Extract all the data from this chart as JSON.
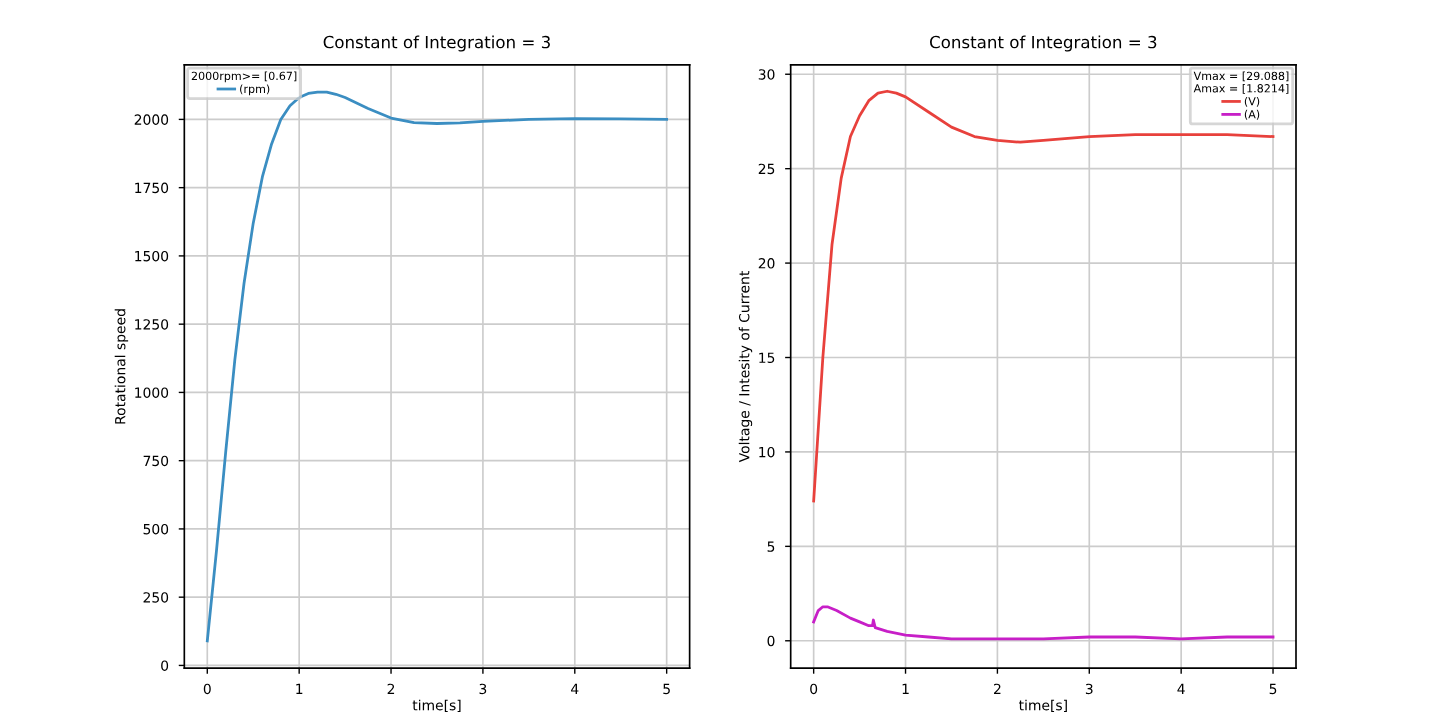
{
  "chart_data": [
    {
      "type": "line",
      "title": "Constant of Integration = 3",
      "xlabel": "time[s]",
      "ylabel": "Rotational speed",
      "legend_title": "2000rpm>= [0.67]",
      "legend": "top left",
      "grid": true,
      "xlim": [
        -0.25,
        5.25
      ],
      "xticks": [
        0,
        1,
        2,
        3,
        4,
        5
      ],
      "ylim": [
        -10,
        2200
      ],
      "yticks": [
        0,
        250,
        500,
        750,
        1000,
        1250,
        1500,
        1750,
        2000
      ],
      "series": [
        {
          "name": "(rpm)",
          "color": "#3b8ec2",
          "x": [
            0,
            0.1,
            0.2,
            0.3,
            0.4,
            0.5,
            0.6,
            0.7,
            0.8,
            0.9,
            1.0,
            1.1,
            1.2,
            1.3,
            1.4,
            1.5,
            1.75,
            2.0,
            2.25,
            2.5,
            2.75,
            3.0,
            3.5,
            4.0,
            4.5,
            5.0
          ],
          "values": [
            90,
            420,
            780,
            1120,
            1400,
            1620,
            1790,
            1910,
            2000,
            2050,
            2080,
            2095,
            2100,
            2100,
            2092,
            2080,
            2040,
            2005,
            1988,
            1985,
            1987,
            1993,
            2000,
            2003,
            2002,
            2000
          ]
        }
      ]
    },
    {
      "type": "line",
      "title": "Constant of Integration = 3",
      "xlabel": "time[s]",
      "ylabel": "Voltage / Intesity of Current",
      "legend_title": "Vmax = [29.088]\nAmax = [1.8214]",
      "legend": "top right",
      "grid": true,
      "xlim": [
        -0.25,
        5.25
      ],
      "xticks": [
        0,
        1,
        2,
        3,
        4,
        5
      ],
      "ylim": [
        -1.45,
        30.5
      ],
      "yticks": [
        0,
        5,
        10,
        15,
        20,
        25,
        30
      ],
      "series": [
        {
          "name": "(V)",
          "color": "#e8413c",
          "x": [
            0,
            0.1,
            0.2,
            0.3,
            0.4,
            0.5,
            0.6,
            0.7,
            0.8,
            0.9,
            1.0,
            1.25,
            1.5,
            1.75,
            2.0,
            2.25,
            2.5,
            3.0,
            3.5,
            4.0,
            4.5,
            5.0
          ],
          "values": [
            7.4,
            15,
            21,
            24.5,
            26.7,
            27.8,
            28.6,
            29.0,
            29.1,
            29.0,
            28.8,
            28.0,
            27.2,
            26.7,
            26.5,
            26.4,
            26.5,
            26.7,
            26.8,
            26.8,
            26.8,
            26.7
          ]
        },
        {
          "name": "(A)",
          "color": "#c71fc7",
          "x": [
            0,
            0.05,
            0.1,
            0.15,
            0.25,
            0.4,
            0.5,
            0.6,
            0.64,
            0.65,
            0.67,
            0.8,
            1.0,
            1.25,
            1.5,
            2.0,
            2.5,
            3.0,
            3.5,
            4.0,
            4.5,
            5.0
          ],
          "values": [
            1.0,
            1.6,
            1.8,
            1.8,
            1.6,
            1.2,
            1.0,
            0.8,
            0.8,
            1.1,
            0.7,
            0.5,
            0.3,
            0.2,
            0.1,
            0.1,
            0.1,
            0.2,
            0.2,
            0.1,
            0.2,
            0.2
          ]
        }
      ]
    }
  ]
}
